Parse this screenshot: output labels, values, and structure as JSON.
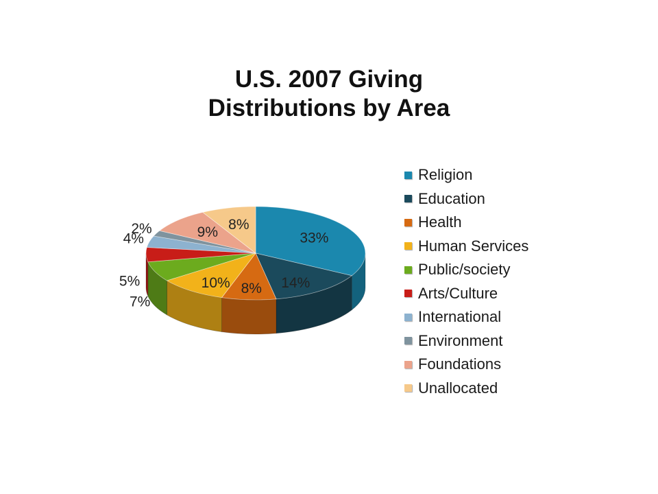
{
  "chart_data": {
    "type": "pie",
    "title": [
      "U.S. 2007 Giving",
      "Distributions by Area"
    ],
    "categories": [
      "Religion",
      "Education",
      "Health",
      "Human Services",
      "Public/society",
      "Arts/Culture",
      "International",
      "Environment",
      "Foundations",
      "Unallocated"
    ],
    "values": [
      33,
      14,
      8,
      10,
      7,
      5,
      4,
      2,
      9,
      8
    ],
    "labels": [
      "33%",
      "14%",
      "8%",
      "10%",
      "7%",
      "5%",
      "4%",
      "2%",
      "9%",
      "8%"
    ],
    "colors": [
      "#1b88ae",
      "#1b4a5c",
      "#d66a12",
      "#f2b21a",
      "#6cab1e",
      "#c81d18",
      "#8db2cf",
      "#7f939e",
      "#eba38b",
      "#f6c98a"
    ],
    "legend_position": "right",
    "three_d": true
  }
}
